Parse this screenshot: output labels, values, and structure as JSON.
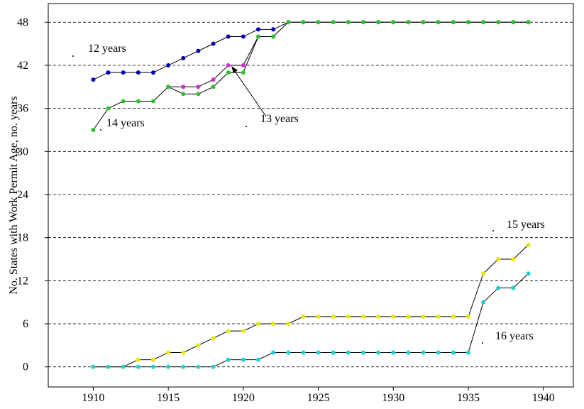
{
  "chart_data": {
    "type": "line",
    "y_label": "No. States with Work Permit Age,  no. years",
    "x": [
      1910,
      1911,
      1912,
      1913,
      1914,
      1915,
      1916,
      1917,
      1918,
      1919,
      1920,
      1921,
      1922,
      1923,
      1924,
      1925,
      1926,
      1927,
      1928,
      1929,
      1930,
      1931,
      1932,
      1933,
      1934,
      1935,
      1936,
      1937,
      1938,
      1939
    ],
    "series": [
      {
        "name": "12 years",
        "color": "#0000b0",
        "values": [
          40,
          41,
          41,
          41,
          41,
          42,
          43,
          44,
          45,
          46,
          46,
          47,
          47,
          48,
          48,
          48,
          48,
          48,
          48,
          48,
          48,
          48,
          48,
          48,
          48,
          48,
          48,
          48,
          48,
          48
        ]
      },
      {
        "name": "13 years",
        "color": "#d030d0",
        "values": [
          null,
          null,
          null,
          null,
          null,
          39,
          39,
          39,
          40,
          42,
          42,
          46,
          46,
          null,
          null,
          null,
          null,
          null,
          null,
          null,
          null,
          null,
          null,
          null,
          null,
          null,
          null,
          null,
          null,
          null
        ]
      },
      {
        "name": "14 years",
        "color": "#30c030",
        "values": [
          33,
          36,
          37,
          37,
          37,
          39,
          38,
          38,
          39,
          41,
          41,
          46,
          46,
          48,
          48,
          48,
          48,
          48,
          48,
          48,
          48,
          48,
          48,
          48,
          48,
          48,
          48,
          48,
          48,
          48
        ]
      },
      {
        "name": "15 years",
        "color": "#e8e800",
        "values": [
          0,
          0,
          0,
          1,
          1,
          2,
          2,
          3,
          4,
          5,
          5,
          6,
          6,
          6,
          7,
          7,
          7,
          7,
          7,
          7,
          7,
          7,
          7,
          7,
          7,
          7,
          13,
          15,
          15,
          17
        ]
      },
      {
        "name": "16 years",
        "color": "#20d0d0",
        "values": [
          0,
          0,
          0,
          0,
          0,
          0,
          0,
          0,
          0,
          1,
          1,
          1,
          2,
          2,
          2,
          2,
          2,
          2,
          2,
          2,
          2,
          2,
          2,
          2,
          2,
          2,
          9,
          11,
          11,
          13
        ]
      }
    ],
    "xlim": [
      1907,
      1942
    ],
    "xticks": [
      1910,
      1915,
      1920,
      1925,
      1930,
      1935,
      1940
    ],
    "ylim": [
      -2.8,
      50.6
    ],
    "yticks": [
      0,
      6,
      12,
      18,
      24,
      30,
      36,
      42,
      48
    ],
    "grid": true
  }
}
